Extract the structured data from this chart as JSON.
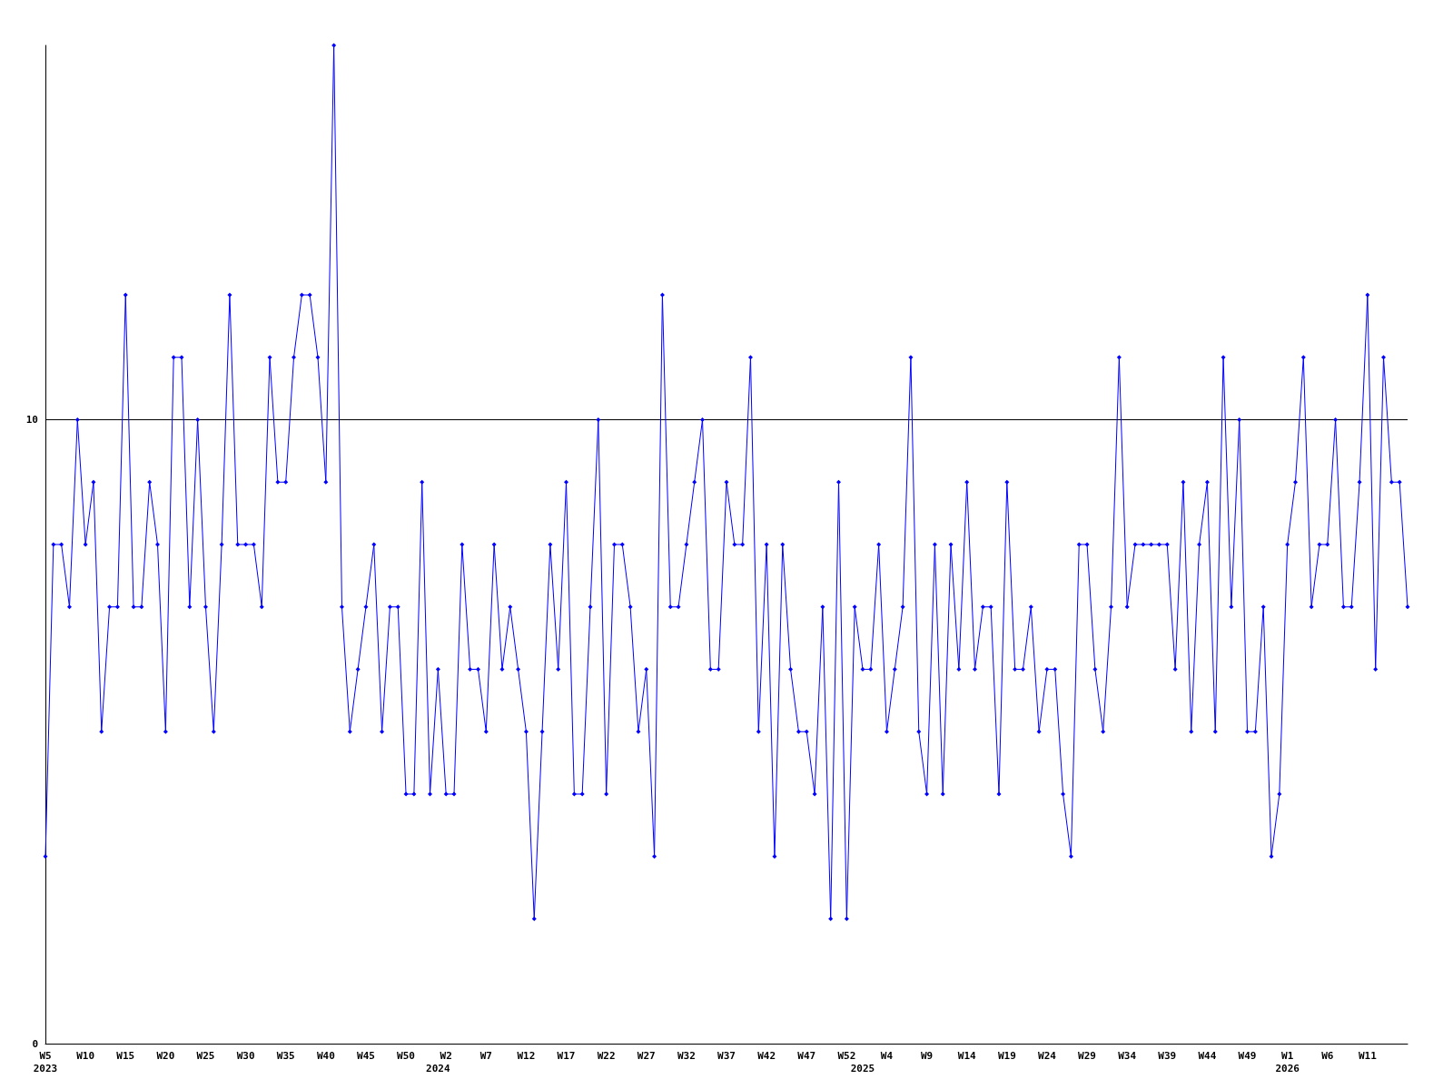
{
  "chart_data": {
    "type": "line",
    "categories": [
      "W5\n2023",
      null,
      null,
      null,
      null,
      "W10",
      null,
      null,
      null,
      null,
      "W15",
      null,
      null,
      null,
      null,
      "W20",
      null,
      null,
      null,
      null,
      "W25",
      null,
      null,
      null,
      null,
      "W30",
      null,
      null,
      null,
      null,
      "W35",
      null,
      null,
      null,
      null,
      "W40",
      null,
      null,
      null,
      null,
      "W45",
      null,
      null,
      null,
      null,
      "W50",
      null,
      null,
      null,
      "\n2024",
      "W2",
      null,
      null,
      null,
      null,
      "W7",
      null,
      null,
      null,
      null,
      "W12",
      null,
      null,
      null,
      null,
      "W17",
      null,
      null,
      null,
      null,
      "W22",
      null,
      null,
      null,
      null,
      "W27",
      null,
      null,
      null,
      null,
      "W32",
      null,
      null,
      null,
      null,
      "W37",
      null,
      null,
      null,
      null,
      "W42",
      null,
      null,
      null,
      null,
      "W47",
      null,
      null,
      null,
      null,
      "W52",
      null,
      "\n2025",
      null,
      null,
      "W4",
      null,
      null,
      null,
      null,
      "W9",
      null,
      null,
      null,
      null,
      "W14",
      null,
      null,
      null,
      null,
      "W19",
      null,
      null,
      null,
      null,
      "W24",
      null,
      null,
      null,
      null,
      "W29",
      null,
      null,
      null,
      null,
      "W34",
      null,
      null,
      null,
      null,
      "W39",
      null,
      null,
      null,
      null,
      "W44",
      null,
      null,
      null,
      null,
      "W49",
      null,
      null,
      null,
      null,
      "W1\n2026",
      null,
      null,
      null,
      null,
      "W6",
      null,
      null,
      null,
      null,
      "W11",
      null,
      null,
      null,
      null,
      null
    ],
    "series": [
      {
        "color": "#0000ff",
        "values": [
          3,
          8,
          8,
          7,
          10,
          8,
          9,
          5,
          7,
          7,
          12,
          7,
          7,
          9,
          8,
          5,
          11,
          11,
          7,
          10,
          7,
          5,
          8,
          12,
          8,
          8,
          8,
          7,
          11,
          9,
          9,
          11,
          12,
          12,
          11,
          9,
          16,
          7,
          5,
          6,
          7,
          8,
          5,
          7,
          7,
          4,
          4,
          9,
          4,
          6,
          4,
          4,
          8,
          6,
          6,
          5,
          8,
          6,
          7,
          6,
          5,
          2,
          5,
          8,
          6,
          9,
          4,
          4,
          7,
          10,
          4,
          8,
          8,
          7,
          5,
          6,
          3,
          12,
          7,
          7,
          8,
          9,
          10,
          6,
          6,
          9,
          8,
          8,
          11,
          5,
          8,
          3,
          8,
          6,
          5,
          5,
          4,
          7,
          2,
          9,
          2,
          7,
          6,
          6,
          8,
          5,
          6,
          7,
          11,
          5,
          4,
          8,
          4,
          8,
          6,
          9,
          6,
          7,
          7,
          4,
          9,
          6,
          6,
          7,
          5,
          6,
          6,
          4,
          3,
          8,
          8,
          6,
          5,
          7,
          11,
          7,
          8,
          8,
          8,
          8,
          8,
          6,
          9,
          5,
          8,
          9,
          5,
          11,
          7,
          10,
          5,
          5,
          7,
          3,
          4,
          8,
          9,
          11,
          7,
          8,
          8,
          10,
          7,
          7,
          9,
          12,
          6,
          11,
          9,
          9,
          7
        ]
      }
    ],
    "ylim": [
      0,
      16
    ],
    "yticks": [
      0,
      10
    ],
    "grid": "y",
    "marker": "diamond",
    "line_style": "solid"
  }
}
